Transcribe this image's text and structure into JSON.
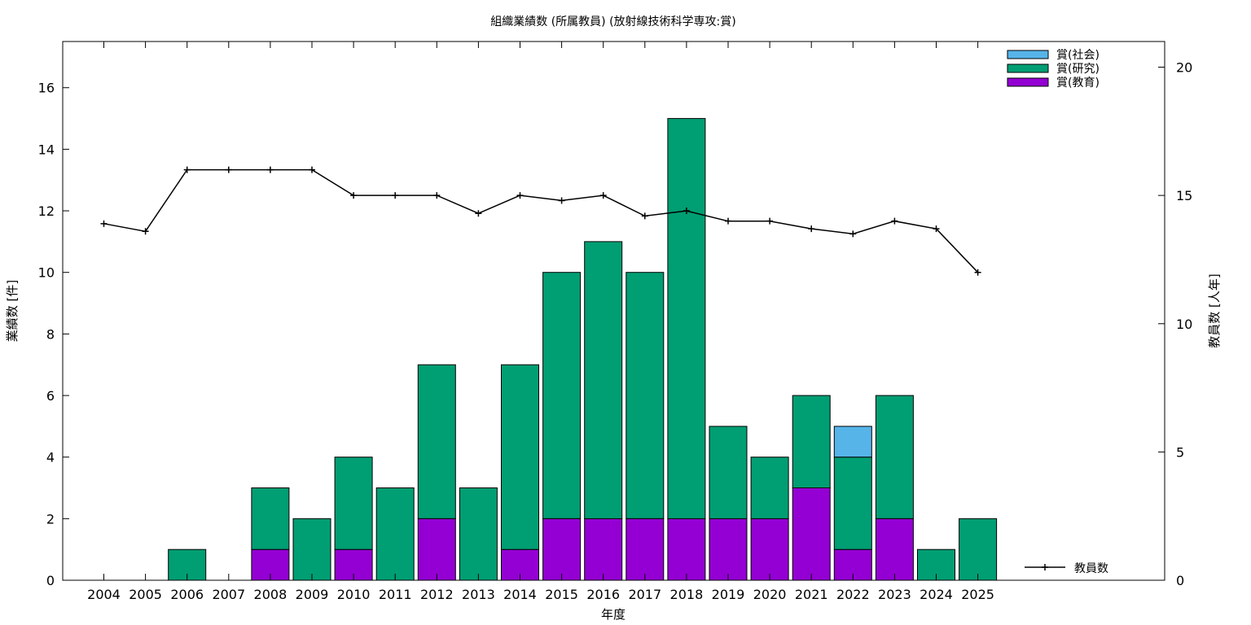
{
  "chart_data": {
    "type": "bar",
    "title": "組織業績数 (所属教員) (放射線技術科学専攻:賞)",
    "xlabel": "年度",
    "ylabel": "業績数 [件]",
    "y2label": "教員数 [人年]",
    "stacked": true,
    "categories": [
      "2004",
      "2005",
      "2006",
      "2007",
      "2008",
      "2009",
      "2010",
      "2011",
      "2012",
      "2013",
      "2014",
      "2015",
      "2016",
      "2017",
      "2018",
      "2019",
      "2020",
      "2021",
      "2022",
      "2023",
      "2024",
      "2025"
    ],
    "ylim": [
      0,
      17.5
    ],
    "yticks": [
      0,
      2,
      4,
      6,
      8,
      10,
      12,
      14,
      16
    ],
    "y2lim": [
      0,
      21
    ],
    "y2ticks": [
      0,
      5,
      10,
      15,
      20
    ],
    "series": [
      {
        "name": "賞(教育)",
        "color": "#9400d3",
        "values": [
          0,
          0,
          0,
          0,
          1,
          0,
          1,
          0,
          2,
          0,
          1,
          2,
          2,
          2,
          2,
          2,
          2,
          3,
          1,
          2,
          0,
          0
        ]
      },
      {
        "name": "賞(研究)",
        "color": "#009e73",
        "values": [
          0,
          0,
          1,
          0,
          2,
          2,
          3,
          3,
          5,
          3,
          6,
          8,
          9,
          8,
          13,
          3,
          2,
          3,
          3,
          4,
          1,
          2
        ]
      },
      {
        "name": "賞(社会)",
        "color": "#56b4e9",
        "values": [
          0,
          0,
          0,
          0,
          0,
          0,
          0,
          0,
          0,
          0,
          0,
          0,
          0,
          0,
          0,
          0,
          0,
          0,
          1,
          0,
          0,
          0
        ]
      }
    ],
    "line_series": {
      "name": "教員数",
      "axis": "y2",
      "color": "#000000",
      "values": [
        13.9,
        13.6,
        16.0,
        16.0,
        16.0,
        16.0,
        15.0,
        15.0,
        15.0,
        14.3,
        15.0,
        14.8,
        15.0,
        14.2,
        14.4,
        14.0,
        14.0,
        13.7,
        13.5,
        14.0,
        13.7,
        12.0
      ]
    },
    "legend_position": "top-right",
    "line_legend_position": "bottom-right",
    "grid": false
  }
}
